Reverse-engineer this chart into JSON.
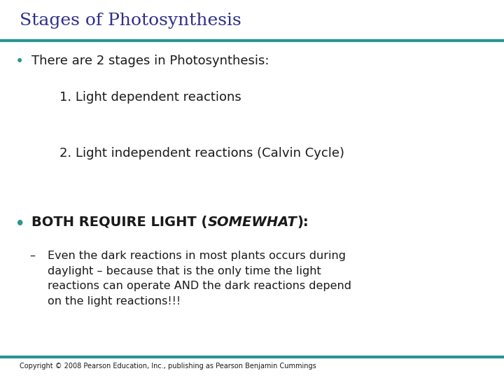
{
  "title": "Stages of Photosynthesis",
  "title_color": "#2E2E8B",
  "title_fontsize": 18,
  "teal_line_color": "#2A9494",
  "background_color": "#FFFFFF",
  "bullet_color": "#2A9494",
  "text_color": "#1A1A1A",
  "bullet1_text": "There are 2 stages in Photosynthesis:",
  "item1_text": "1. Light dependent reactions",
  "item2_text": "2. Light independent reactions (Calvin Cycle)",
  "bullet2_bold": "BOTH REQUIRE LIGHT (",
  "bullet2_italic": "SOMEWHAT",
  "bullet2_end": "):",
  "sub_dash": "–",
  "sub_bullet_text": "Even the dark reactions in most plants occurs during\ndaylight – because that is the only time the light\nreactions can operate AND the dark reactions depend\non the light reactions!!!",
  "copyright_text": "Copyright © 2008 Pearson Education, Inc., publishing as Pearson Benjamin Cummings",
  "copyright_fontsize": 7,
  "main_fontsize": 13,
  "item_fontsize": 13,
  "bold_fontsize": 14,
  "sub_fontsize": 11.5
}
